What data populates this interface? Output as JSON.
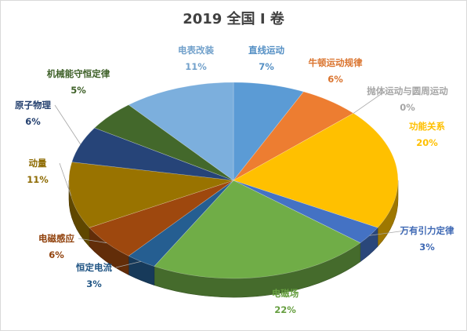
{
  "chart_data": {
    "type": "pie",
    "title": "2019 全国 I 卷",
    "slices": [
      {
        "name": "直线运动",
        "value": 7,
        "label": "7%",
        "color": "#5b9bd5"
      },
      {
        "name": "牛顿运动规律",
        "value": 6,
        "label": "6%",
        "color": "#ed7d31"
      },
      {
        "name": "抛体运动与圆周运动",
        "value": 0,
        "label": "0%",
        "color": "#a5a5a5"
      },
      {
        "name": "功能关系",
        "value": 20,
        "label": "20%",
        "color": "#ffc000"
      },
      {
        "name": "万有引力定律",
        "value": 3,
        "label": "3%",
        "color": "#4472c4"
      },
      {
        "name": "电磁场",
        "value": 22,
        "label": "22%",
        "color": "#70ad47"
      },
      {
        "name": "恒定电流",
        "value": 3,
        "label": "3%",
        "color": "#255e91"
      },
      {
        "name": "电磁感应",
        "value": 6,
        "label": "6%",
        "color": "#9e480e"
      },
      {
        "name": "动量",
        "value": 11,
        "label": "11%",
        "color": "#997300"
      },
      {
        "name": "原子物理",
        "value": 6,
        "label": "6%",
        "color": "#264478"
      },
      {
        "name": "机械能守恒定律",
        "value": 5,
        "label": "5%",
        "color": "#43682b"
      },
      {
        "name": "电表改装",
        "value": 11,
        "label": "11%",
        "color": "#7cafdd"
      }
    ]
  }
}
